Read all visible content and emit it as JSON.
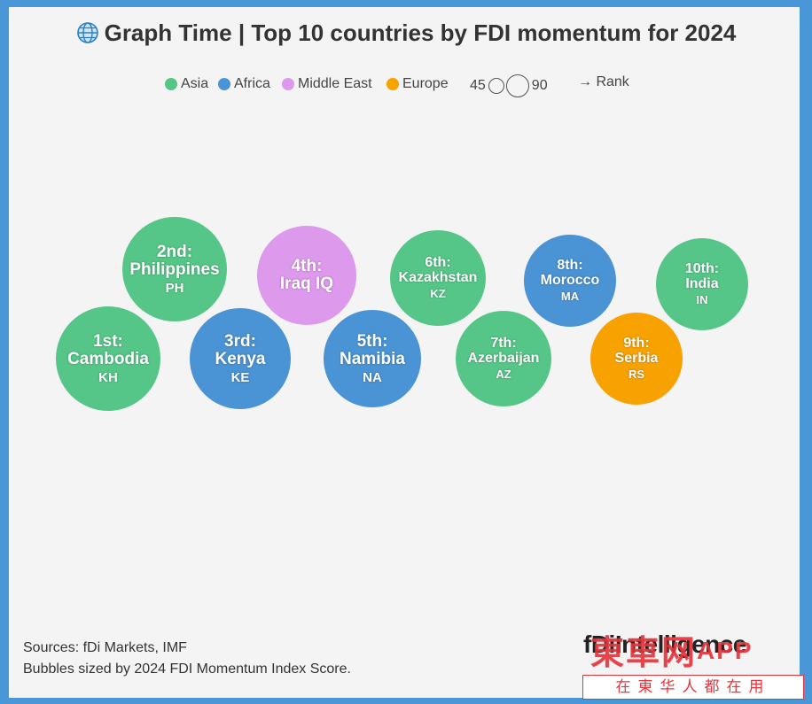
{
  "title": "Graph Time | Top 10 countries by FDI momentum for 2024",
  "legend": {
    "regions": [
      {
        "name": "Asia",
        "color": "#55c687"
      },
      {
        "name": "Africa",
        "color": "#4a93d4"
      },
      {
        "name": "Middle East",
        "color": "#dd99ec"
      },
      {
        "name": "Europe",
        "color": "#f7a200"
      }
    ],
    "size_min": "45",
    "size_max": "90",
    "rank_label": "→ Rank"
  },
  "chart_data": {
    "type": "bubble",
    "title": "Graph Time | Top 10 countries by FDI momentum for 2024",
    "size_metric": "2024 FDI Momentum Index Score",
    "points": [
      {
        "rank": "1st:",
        "country": "Cambodia",
        "code": "KH",
        "region": "Asia",
        "color": "#55c687",
        "size": 72
      },
      {
        "rank": "2nd:",
        "country": "Philippines",
        "code": "PH",
        "region": "Asia",
        "color": "#55c687",
        "size": 72
      },
      {
        "rank": "3rd:",
        "country": "Kenya",
        "code": "KE",
        "region": "Africa",
        "color": "#4a93d4",
        "size": 70
      },
      {
        "rank": "4th:",
        "country": "Iraq",
        "code": "IQ",
        "region": "Middle East",
        "color": "#dd99ec",
        "size": 68
      },
      {
        "rank": "5th:",
        "country": "Namibia",
        "code": "NA",
        "region": "Africa",
        "color": "#4a93d4",
        "size": 67
      },
      {
        "rank": "6th:",
        "country": "Kazakhstan",
        "code": "KZ",
        "region": "Asia",
        "color": "#55c687",
        "size": 66
      },
      {
        "rank": "7th:",
        "country": "Azerbaijan",
        "code": "AZ",
        "region": "Asia",
        "color": "#55c687",
        "size": 66
      },
      {
        "rank": "8th:",
        "country": "Morocco",
        "code": "MA",
        "region": "Africa",
        "color": "#4a93d4",
        "size": 64
      },
      {
        "rank": "9th:",
        "country": "Serbia",
        "code": "RS",
        "region": "Europe",
        "color": "#f7a200",
        "size": 64
      },
      {
        "rank": "10th:",
        "country": "India",
        "code": "IN",
        "region": "Asia",
        "color": "#55c687",
        "size": 64
      }
    ]
  },
  "footer": {
    "sources": "Sources: fDi Markets, IMF",
    "note": "Bubbles sized by 2024 FDI Momentum Index Score."
  },
  "brand": "fDiIntelligence",
  "watermark": {
    "logo": "東車网",
    "app": "APP",
    "tagline": "在東华人都在用"
  }
}
